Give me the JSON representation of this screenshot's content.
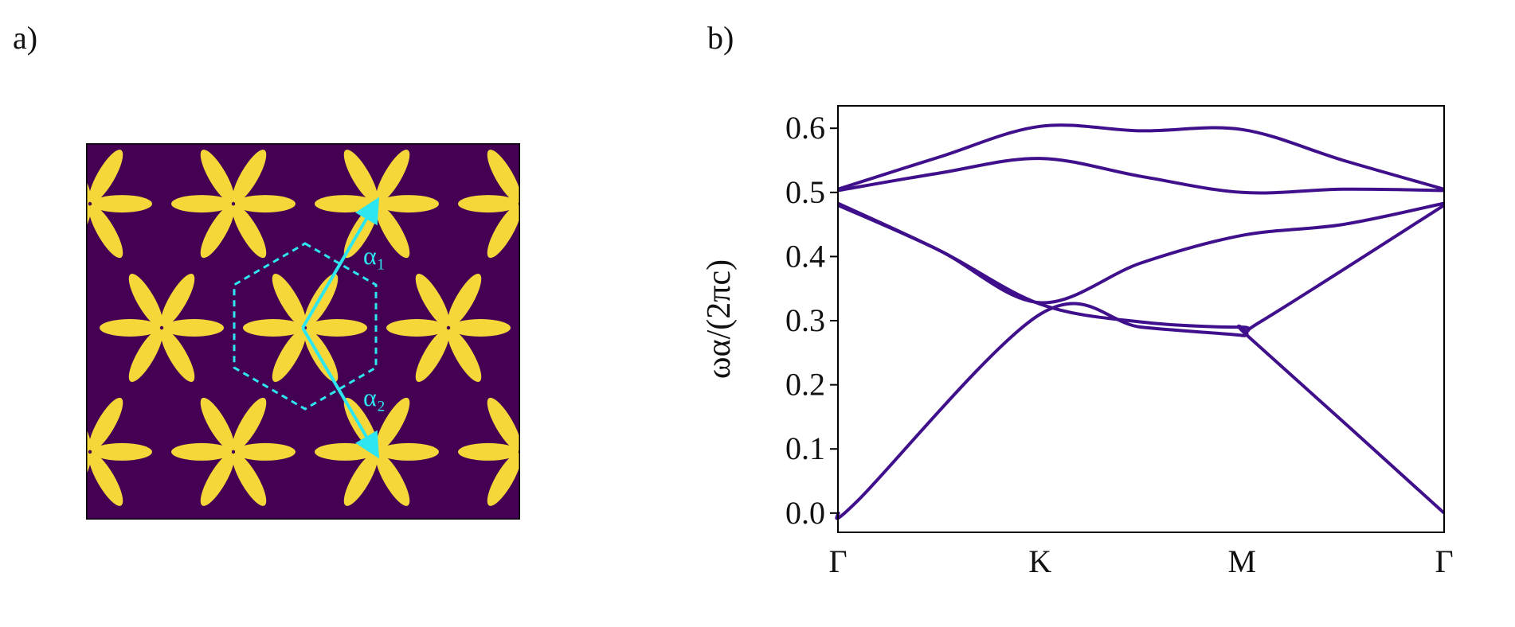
{
  "panels": {
    "a_label": "a)",
    "b_label": "b)"
  },
  "lattice": {
    "background_color": "#440154",
    "rod_color": "#f5d73a",
    "vector_color": "#2ee6f0",
    "vector_labels": [
      "α₁",
      "α₂"
    ]
  },
  "chart_data": {
    "type": "line",
    "title": "",
    "xlabel": "",
    "ylabel": "ωα/(2πc)",
    "x_ticks": [
      "Γ",
      "K",
      "M",
      "Γ"
    ],
    "x_tick_positions": [
      0,
      1,
      2,
      3
    ],
    "y_ticks": [
      "0.0",
      "0.1",
      "0.2",
      "0.3",
      "0.4",
      "0.5",
      "0.6"
    ],
    "ylim": [
      -0.03,
      0.635
    ],
    "xlim": [
      0,
      3
    ],
    "line_color": "#3f0f8c",
    "grid": false,
    "series": [
      {
        "x": [
          0,
          0.1,
          1,
          1.5,
          2,
          2.05,
          3
        ],
        "values": [
          0.0,
          0.02,
          0.31,
          0.29,
          0.277,
          0.27,
          0.0
        ]
      },
      {
        "x": [
          0,
          0.5,
          1,
          1.5,
          2,
          2.1,
          3
        ],
        "values": [
          0.48,
          0.41,
          0.326,
          0.298,
          0.29,
          0.3,
          0.48
        ]
      },
      {
        "x": [
          0,
          0.5,
          1,
          1.5,
          2,
          2.5,
          3
        ],
        "values": [
          0.483,
          0.41,
          0.328,
          0.39,
          0.433,
          0.45,
          0.483
        ]
      },
      {
        "x": [
          0,
          0.5,
          1,
          1.5,
          2,
          2.5,
          3
        ],
        "values": [
          0.503,
          0.53,
          0.553,
          0.525,
          0.5,
          0.505,
          0.503
        ]
      },
      {
        "x": [
          0,
          0.5,
          1,
          1.5,
          2,
          2.5,
          3
        ],
        "values": [
          0.505,
          0.555,
          0.603,
          0.596,
          0.598,
          0.55,
          0.505
        ]
      }
    ]
  }
}
